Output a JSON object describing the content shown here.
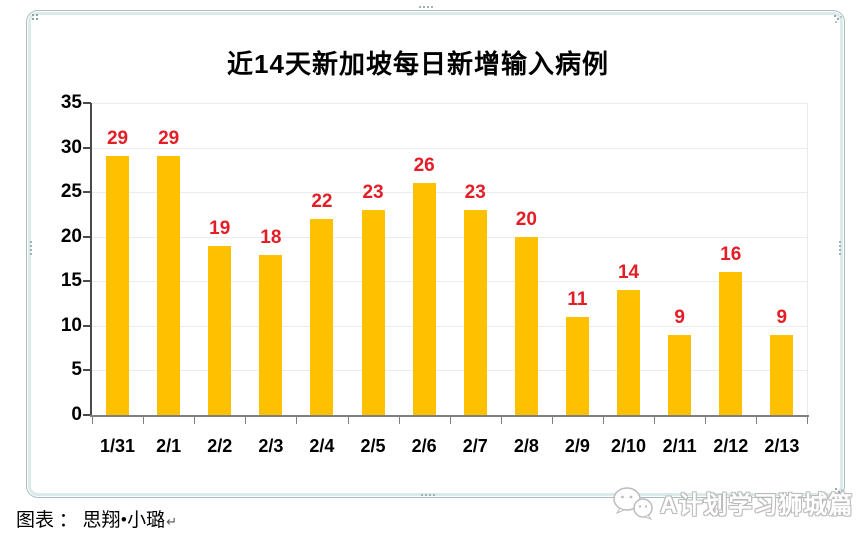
{
  "chart_data": {
    "type": "bar",
    "title": "近14天新加坡每日新增输入病例",
    "categories": [
      "1/31",
      "2/1",
      "2/2",
      "2/3",
      "2/4",
      "2/5",
      "2/6",
      "2/7",
      "2/8",
      "2/9",
      "2/10",
      "2/11",
      "2/12",
      "2/13"
    ],
    "values": [
      29,
      29,
      19,
      18,
      22,
      23,
      26,
      23,
      20,
      11,
      14,
      9,
      16,
      9
    ],
    "xlabel": "",
    "ylabel": "",
    "ylim": [
      0,
      35
    ],
    "yticks": [
      0,
      5,
      10,
      15,
      20,
      25,
      30,
      35
    ],
    "grid": true,
    "legend_position": "none",
    "bar_color": "#FFC000",
    "value_label_color": "#E41E26",
    "gridline_color": "#ebebeb"
  },
  "footer": {
    "caption": "图表 ： 思翔•小璐",
    "return_mark": "↵"
  },
  "watermark": {
    "text": "A计划学习狮城篇",
    "icon": "wechat-icon"
  }
}
